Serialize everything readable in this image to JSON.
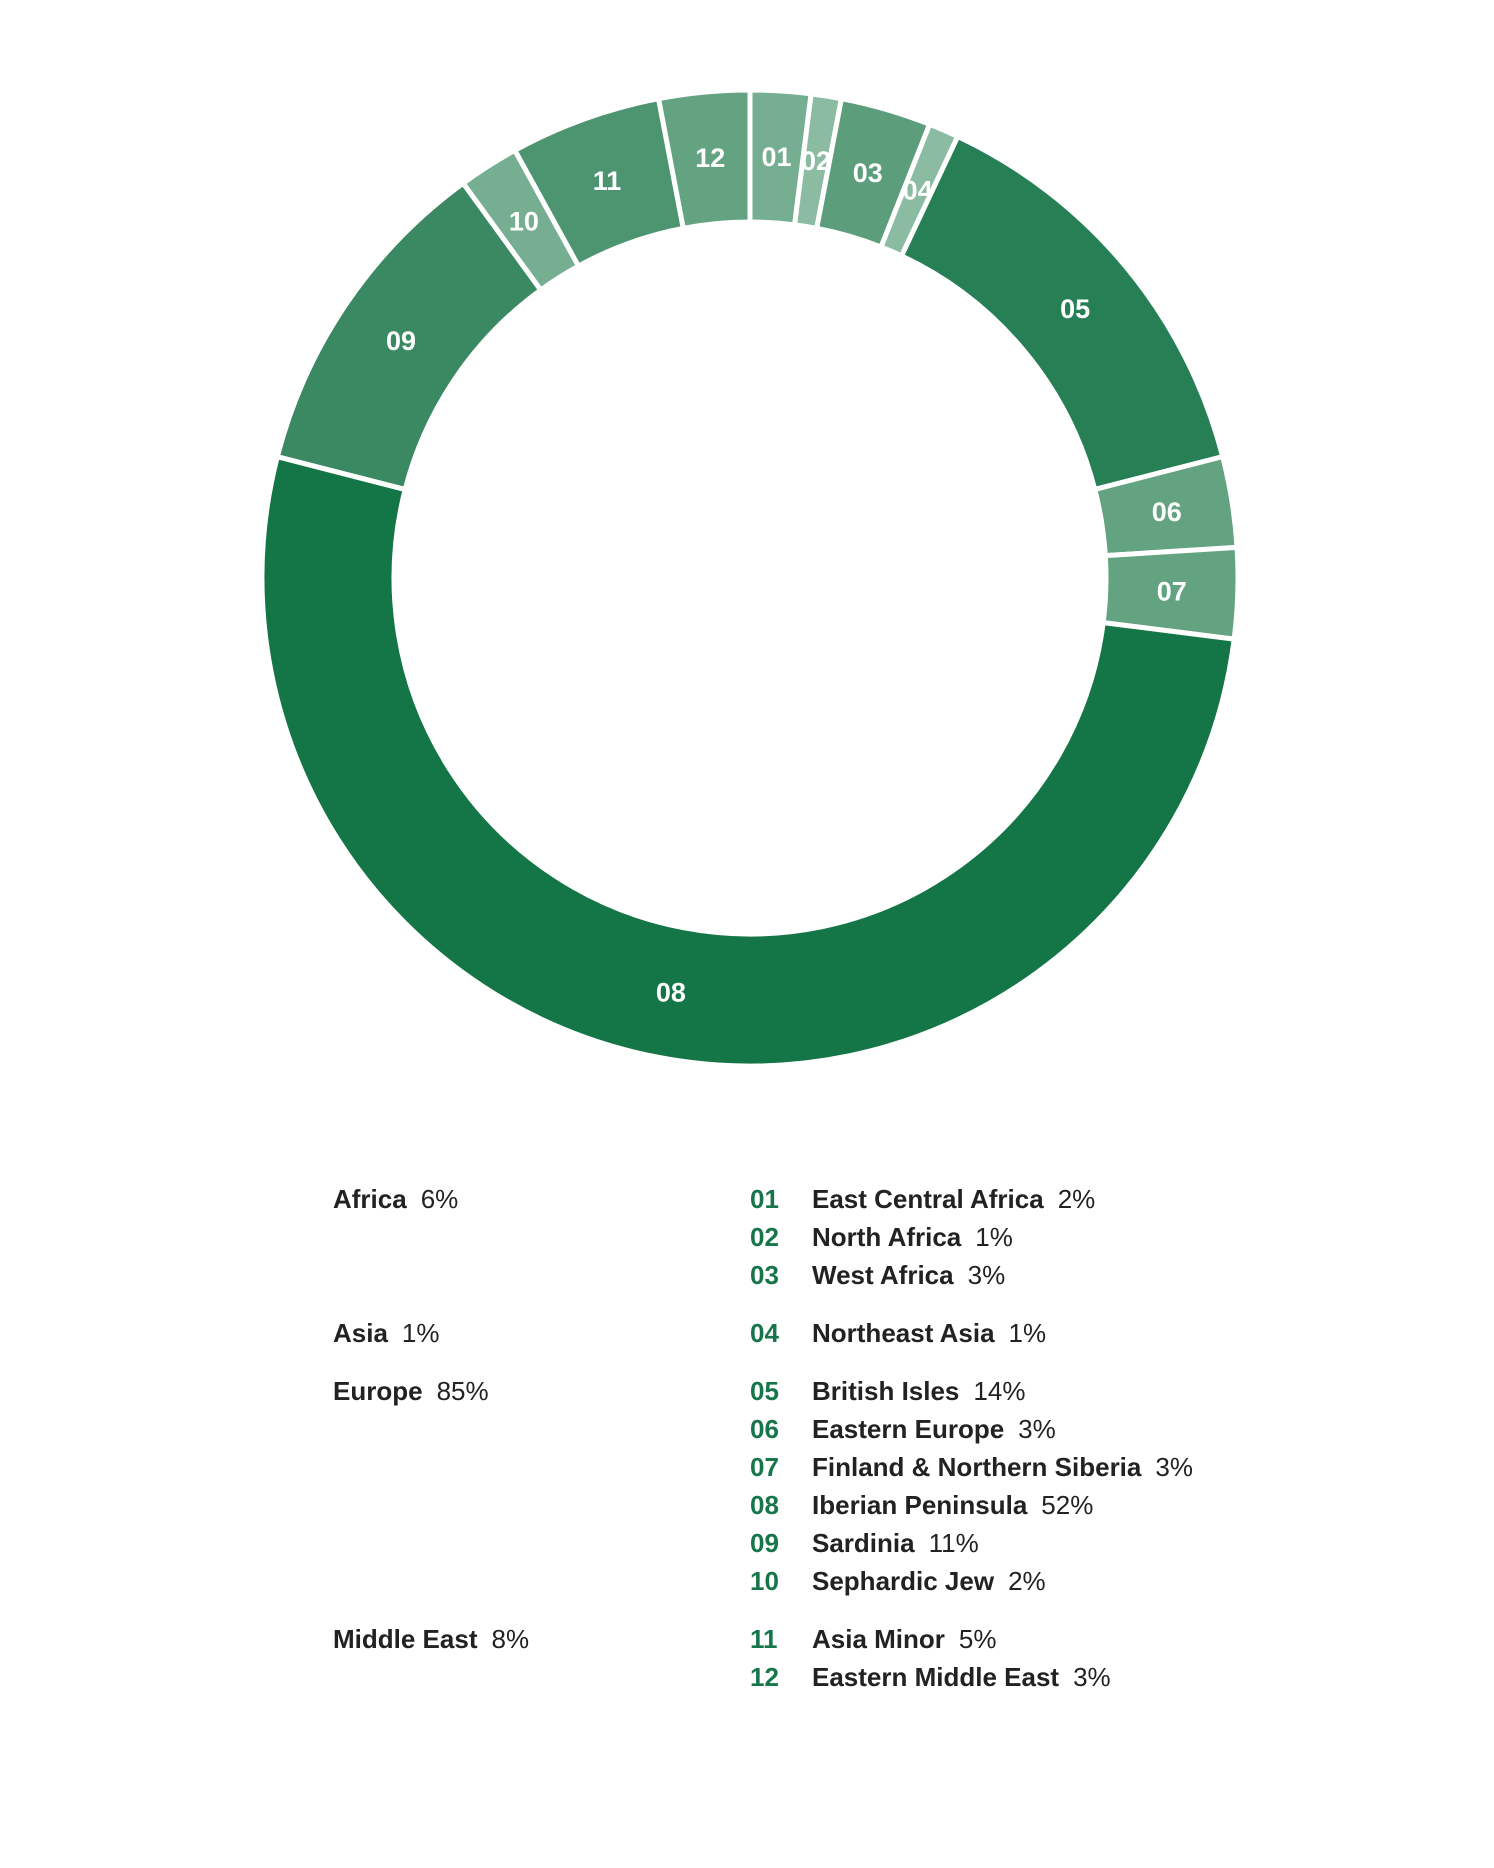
{
  "chart_data": {
    "type": "pie",
    "variant": "donut",
    "start_angle_deg": 0,
    "direction": "clockwise",
    "slices": [
      {
        "id": "01",
        "label": "East Central Africa",
        "value": 2,
        "pct": "2%",
        "color": "#76AE91"
      },
      {
        "id": "02",
        "label": "North Africa",
        "value": 1,
        "pct": "1%",
        "color": "#8BBBA1"
      },
      {
        "id": "03",
        "label": "West Africa",
        "value": 3,
        "pct": "3%",
        "color": "#5C9E7C"
      },
      {
        "id": "04",
        "label": "Northeast Asia",
        "value": 1,
        "pct": "1%",
        "color": "#8BBBA1"
      },
      {
        "id": "05",
        "label": "British Isles",
        "value": 14,
        "pct": "14%",
        "color": "#267F55"
      },
      {
        "id": "06",
        "label": "Eastern Europe",
        "value": 3,
        "pct": "3%",
        "color": "#63A382"
      },
      {
        "id": "07",
        "label": "Finland & Northern Siberia",
        "value": 3,
        "pct": "3%",
        "color": "#63A382"
      },
      {
        "id": "08",
        "label": "Iberian Peninsula",
        "value": 52,
        "pct": "52%",
        "color": "#147546"
      },
      {
        "id": "09",
        "label": "Sardinia",
        "value": 11,
        "pct": "11%",
        "color": "#3B8963"
      },
      {
        "id": "10",
        "label": "Sephardic Jew",
        "value": 2,
        "pct": "2%",
        "color": "#76AE91"
      },
      {
        "id": "11",
        "label": "Asia Minor",
        "value": 5,
        "pct": "5%",
        "color": "#4D9470"
      },
      {
        "id": "12",
        "label": "Eastern Middle East",
        "value": 3,
        "pct": "3%",
        "color": "#63A382"
      }
    ]
  },
  "legend": {
    "regions": [
      {
        "name": "Africa",
        "pct": "6%"
      },
      {
        "name": "Asia",
        "pct": "1%"
      },
      {
        "name": "Europe",
        "pct": "85%"
      },
      {
        "name": "Middle East",
        "pct": "8%"
      }
    ],
    "subregions": [
      {
        "num": "01",
        "name": "East Central Africa",
        "pct": "2%"
      },
      {
        "num": "02",
        "name": "North Africa",
        "pct": "1%"
      },
      {
        "num": "03",
        "name": "West Africa",
        "pct": "3%"
      },
      {
        "num": "04",
        "name": "Northeast Asia",
        "pct": "1%"
      },
      {
        "num": "05",
        "name": "British Isles",
        "pct": "14%"
      },
      {
        "num": "06",
        "name": "Eastern Europe",
        "pct": "3%"
      },
      {
        "num": "07",
        "name": "Finland & Northern Siberia",
        "pct": "3%"
      },
      {
        "num": "08",
        "name": "Iberian Peninsula",
        "pct": "52%"
      },
      {
        "num": "09",
        "name": "Sardinia",
        "pct": "11%"
      },
      {
        "num": "10",
        "name": "Sephardic Jew",
        "pct": "2%"
      },
      {
        "num": "11",
        "name": "Asia Minor",
        "pct": "5%"
      },
      {
        "num": "12",
        "name": "Eastern Middle East",
        "pct": "3%"
      }
    ]
  },
  "colors": {
    "accent": "#16764A",
    "text": "#222222",
    "separator": "#FFFFFF"
  }
}
